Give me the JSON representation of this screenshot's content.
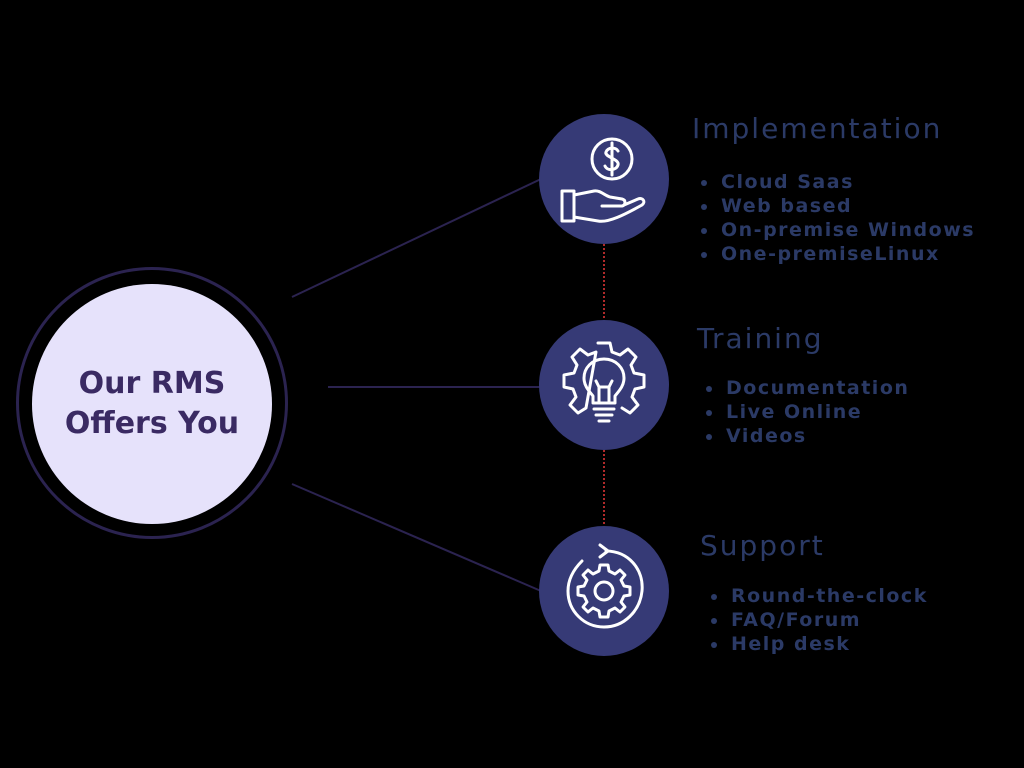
{
  "hub": {
    "title": "Our RMS Offers You"
  },
  "sections": [
    {
      "title": "Implementation",
      "icon": "hand-dollar-coin-icon",
      "items": [
        "Cloud Saas",
        "Web based",
        "On-premise Windows",
        "One-premiseLinux"
      ]
    },
    {
      "title": "Training",
      "icon": "lightbulb-gear-icon",
      "items": [
        "Documentation",
        "Live Online",
        "Videos"
      ]
    },
    {
      "title": "Support",
      "icon": "gear-refresh-icon",
      "items": [
        "Round-the-clock",
        "FAQ/Forum",
        "Help desk"
      ]
    }
  ],
  "colors": {
    "background": "#000000",
    "hub_fill": "#e6e2fb",
    "hub_text": "#3a2a63",
    "node_fill": "#363a76",
    "text": "#2b3a66",
    "connector": "#2b2350",
    "dotted_link": "#b02a2a"
  }
}
